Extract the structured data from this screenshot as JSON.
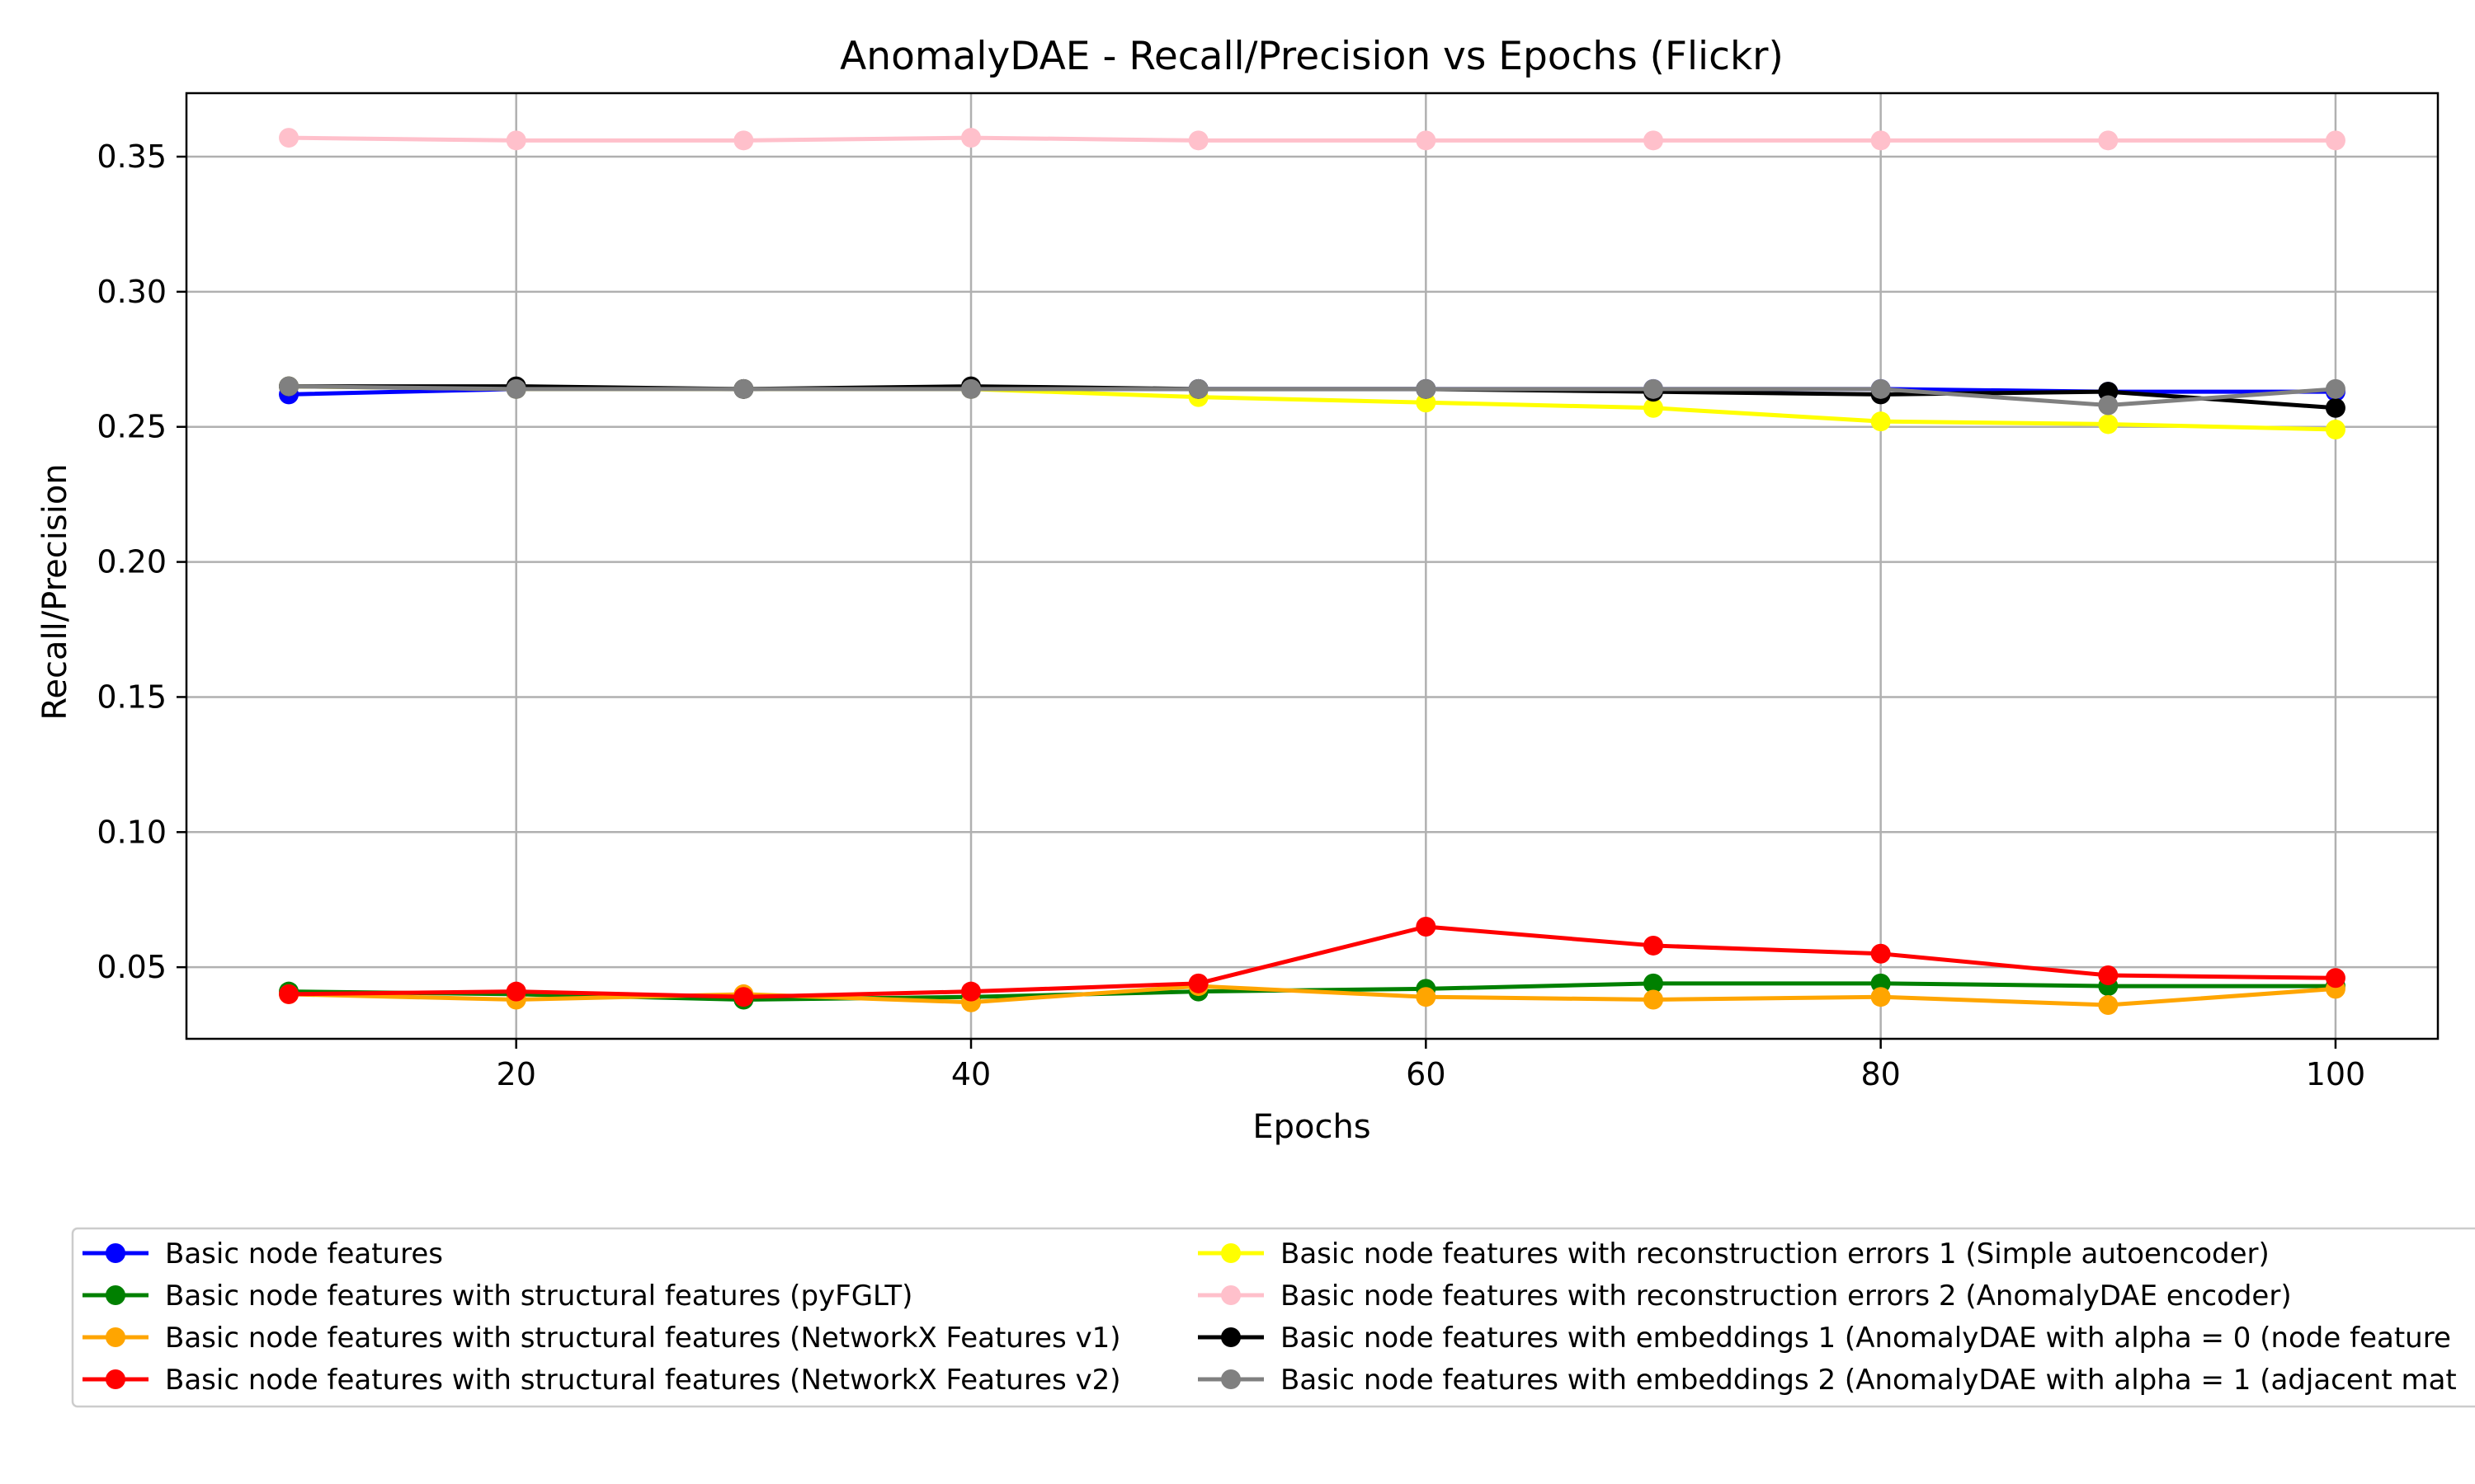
{
  "chart_data": {
    "type": "line",
    "title": "AnomalyDAE - Recall/Precision vs Epochs (Flickr)",
    "xlabel": "Epochs",
    "ylabel": "Recall/Precision",
    "xlim": [
      5.5,
      104.5
    ],
    "ylim": [
      0.0235,
      0.3735
    ],
    "grid": true,
    "legend_position": "bottom, outside plot (2 columns)",
    "xticks": [
      20,
      40,
      60,
      80,
      100
    ],
    "xtick_labels": [
      "20",
      "40",
      "60",
      "80",
      "100"
    ],
    "yticks": [
      0.05,
      0.1,
      0.15,
      0.2,
      0.25,
      0.3,
      0.35
    ],
    "ytick_labels": [
      "0.05",
      "0.10",
      "0.15",
      "0.20",
      "0.25",
      "0.30",
      "0.35"
    ],
    "x": [
      10,
      20,
      30,
      40,
      50,
      60,
      70,
      80,
      90,
      100
    ],
    "series": [
      {
        "name": "Basic node features",
        "color": "#0000ff",
        "values": [
          0.262,
          0.264,
          0.264,
          0.264,
          0.264,
          0.264,
          0.264,
          0.264,
          0.263,
          0.263
        ]
      },
      {
        "name": "Basic node features with structural features (pyFGLT)",
        "color": "#008000",
        "values": [
          0.041,
          0.04,
          0.038,
          0.039,
          0.041,
          0.042,
          0.044,
          0.044,
          0.043,
          0.043
        ]
      },
      {
        "name": "Basic node features with structural features (NetworkX Features v1)",
        "color": "#ffa500",
        "values": [
          0.04,
          0.038,
          0.04,
          0.037,
          0.043,
          0.039,
          0.038,
          0.039,
          0.036,
          0.042
        ]
      },
      {
        "name": "Basic node features with structural features (NetworkX Features v2)",
        "color": "#ff0000",
        "values": [
          0.04,
          0.041,
          0.039,
          0.041,
          0.044,
          0.065,
          0.058,
          0.055,
          0.047,
          0.046
        ]
      },
      {
        "name": "Basic node features with reconstruction errors 1 (Simple autoencoder)",
        "color": "#ffff00",
        "values": [
          0.265,
          0.264,
          0.264,
          0.264,
          0.261,
          0.259,
          0.257,
          0.252,
          0.251,
          0.249
        ]
      },
      {
        "name": "Basic node features with reconstruction errors 2 (AnomalyDAE encoder)",
        "color": "#ffc0cb",
        "values": [
          0.357,
          0.356,
          0.356,
          0.357,
          0.356,
          0.356,
          0.356,
          0.356,
          0.356,
          0.356
        ]
      },
      {
        "name": "Basic node features with embeddings 1 (AnomalyDAE with alpha = 0 (node feature",
        "color": "#000000",
        "values": [
          0.265,
          0.265,
          0.264,
          0.265,
          0.264,
          0.264,
          0.263,
          0.262,
          0.263,
          0.257
        ]
      },
      {
        "name": "Basic node features with embeddings 2 (AnomalyDAE with alpha = 1 (adjacent mat",
        "color": "#808080",
        "values": [
          0.265,
          0.264,
          0.264,
          0.264,
          0.264,
          0.264,
          0.264,
          0.264,
          0.258,
          0.264
        ]
      }
    ]
  }
}
